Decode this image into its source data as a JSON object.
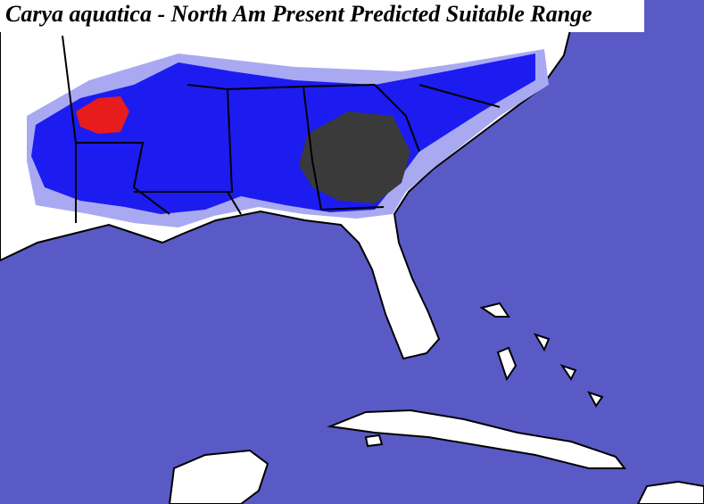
{
  "title": "Carya aquatica - North Am Present Predicted Suitable Range"
}
